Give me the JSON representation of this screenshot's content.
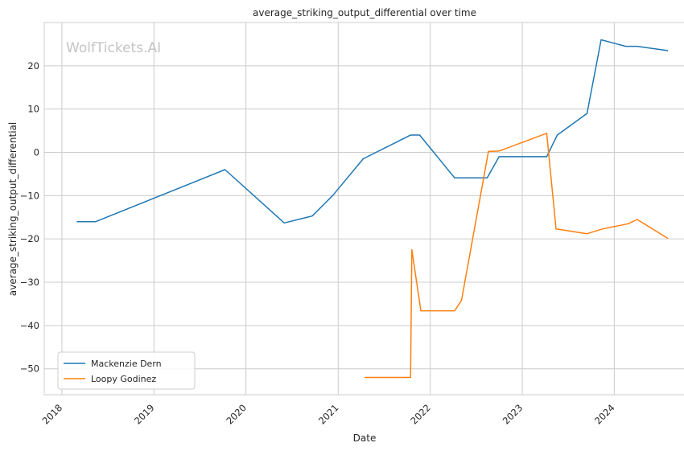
{
  "chart_data": {
    "type": "line",
    "title": "average_striking_output_differential over time",
    "xlabel": "Date",
    "ylabel": "average_striking_output_differential",
    "watermark": "WolfTickets.AI",
    "x_ticks": [
      "2018",
      "2019",
      "2020",
      "2021",
      "2022",
      "2023",
      "2024"
    ],
    "y_ticks": [
      "−50",
      "−40",
      "−30",
      "−20",
      "−10",
      "0",
      "10",
      "20"
    ],
    "y_tick_values": [
      -50,
      -40,
      -30,
      -20,
      -10,
      0,
      10,
      20
    ],
    "xlim": [
      "2017-10-23",
      "2024-10-10"
    ],
    "ylim": [
      -56,
      30
    ],
    "grid": true,
    "legend_position": "lower-left",
    "series": [
      {
        "name": "Mackenzie Dern",
        "color": "#1f77b4",
        "points": [
          [
            "2018-03-01",
            -16
          ],
          [
            "2018-05-15",
            -16
          ],
          [
            "2019-10-10",
            -4
          ],
          [
            "2020-06-01",
            -16.3
          ],
          [
            "2020-09-20",
            -14.7
          ],
          [
            "2020-12-10",
            -10
          ],
          [
            "2021-04-10",
            -1.5
          ],
          [
            "2021-04-20",
            -1.2
          ],
          [
            "2021-10-15",
            4
          ],
          [
            "2021-11-20",
            4
          ],
          [
            "2022-04-08",
            -5.9
          ],
          [
            "2022-08-15",
            -5.9
          ],
          [
            "2022-10-01",
            -1
          ],
          [
            "2023-04-08",
            -1
          ],
          [
            "2023-05-20",
            4
          ],
          [
            "2023-09-15",
            9
          ],
          [
            "2023-11-10",
            26
          ],
          [
            "2024-02-15",
            24.5
          ],
          [
            "2024-04-01",
            24.5
          ],
          [
            "2024-08-01",
            23.5
          ]
        ]
      },
      {
        "name": "Loopy Godinez",
        "color": "#ff7f0e",
        "points": [
          [
            "2021-04-15",
            -52
          ],
          [
            "2021-10-15",
            -52
          ],
          [
            "2021-10-20",
            -22.5
          ],
          [
            "2021-11-25",
            -36.6
          ],
          [
            "2022-04-08",
            -36.6
          ],
          [
            "2022-05-05",
            -34.2
          ],
          [
            "2022-08-20",
            0.2
          ],
          [
            "2022-10-01",
            0.3
          ],
          [
            "2023-04-08",
            4.4
          ],
          [
            "2023-05-15",
            -17.7
          ],
          [
            "2023-09-15",
            -18.8
          ],
          [
            "2023-11-15",
            -17.7
          ],
          [
            "2024-02-25",
            -16.5
          ],
          [
            "2024-04-01",
            -15.5
          ],
          [
            "2024-08-01",
            -19.9
          ]
        ]
      }
    ]
  }
}
